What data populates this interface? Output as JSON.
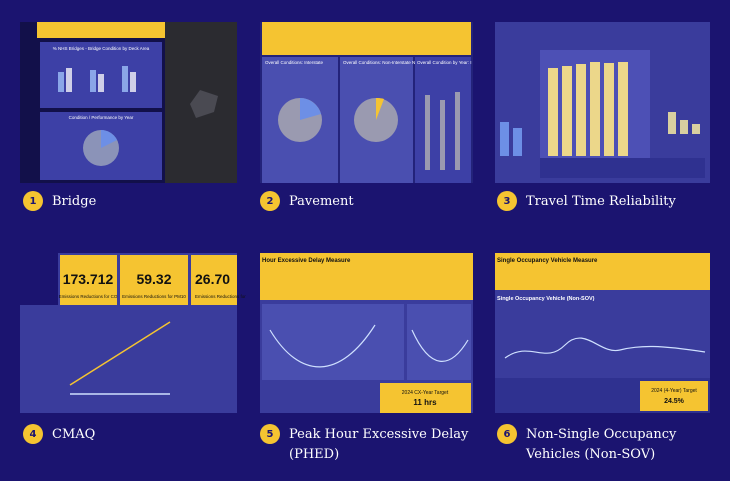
{
  "cards": [
    {
      "number": "1",
      "label": [
        "Bridge"
      ],
      "texts": [
        "% NHS Bridges - Bridge Condition by Deck Area",
        "Condition / Performance by Year"
      ]
    },
    {
      "number": "2",
      "label": [
        "Pavement"
      ],
      "texts": [
        "Overall Conditions: Interstate",
        "Overall Conditions: Non-Interstate NHS",
        "Overall Condition by Year: I"
      ]
    },
    {
      "number": "3",
      "label": [
        "Travel Time Reliability"
      ],
      "texts": []
    },
    {
      "number": "4",
      "label": [
        "CMAQ"
      ],
      "texts": [
        "173.712",
        "59.32",
        "26.70",
        "Emissions Reductions for CO",
        "Emissions Reductions for PM10",
        "Emissions Reductions for"
      ]
    },
    {
      "number": "5",
      "label": [
        "Peak Hour Excessive Delay",
        "(PHED)"
      ],
      "texts": [
        "Hour Excessive Delay Measure",
        "2024 CX-Year Target",
        "11 hrs"
      ]
    },
    {
      "number": "6",
      "label": [
        "Non-Single Occupancy",
        "Vehicles (Non-SOV)"
      ],
      "texts": [
        "Single Occupancy Vehicle Measure",
        "Single Occupancy Vehicle (Non-SOV)",
        "2024 (4-Year) Target",
        "24.5%"
      ]
    }
  ]
}
